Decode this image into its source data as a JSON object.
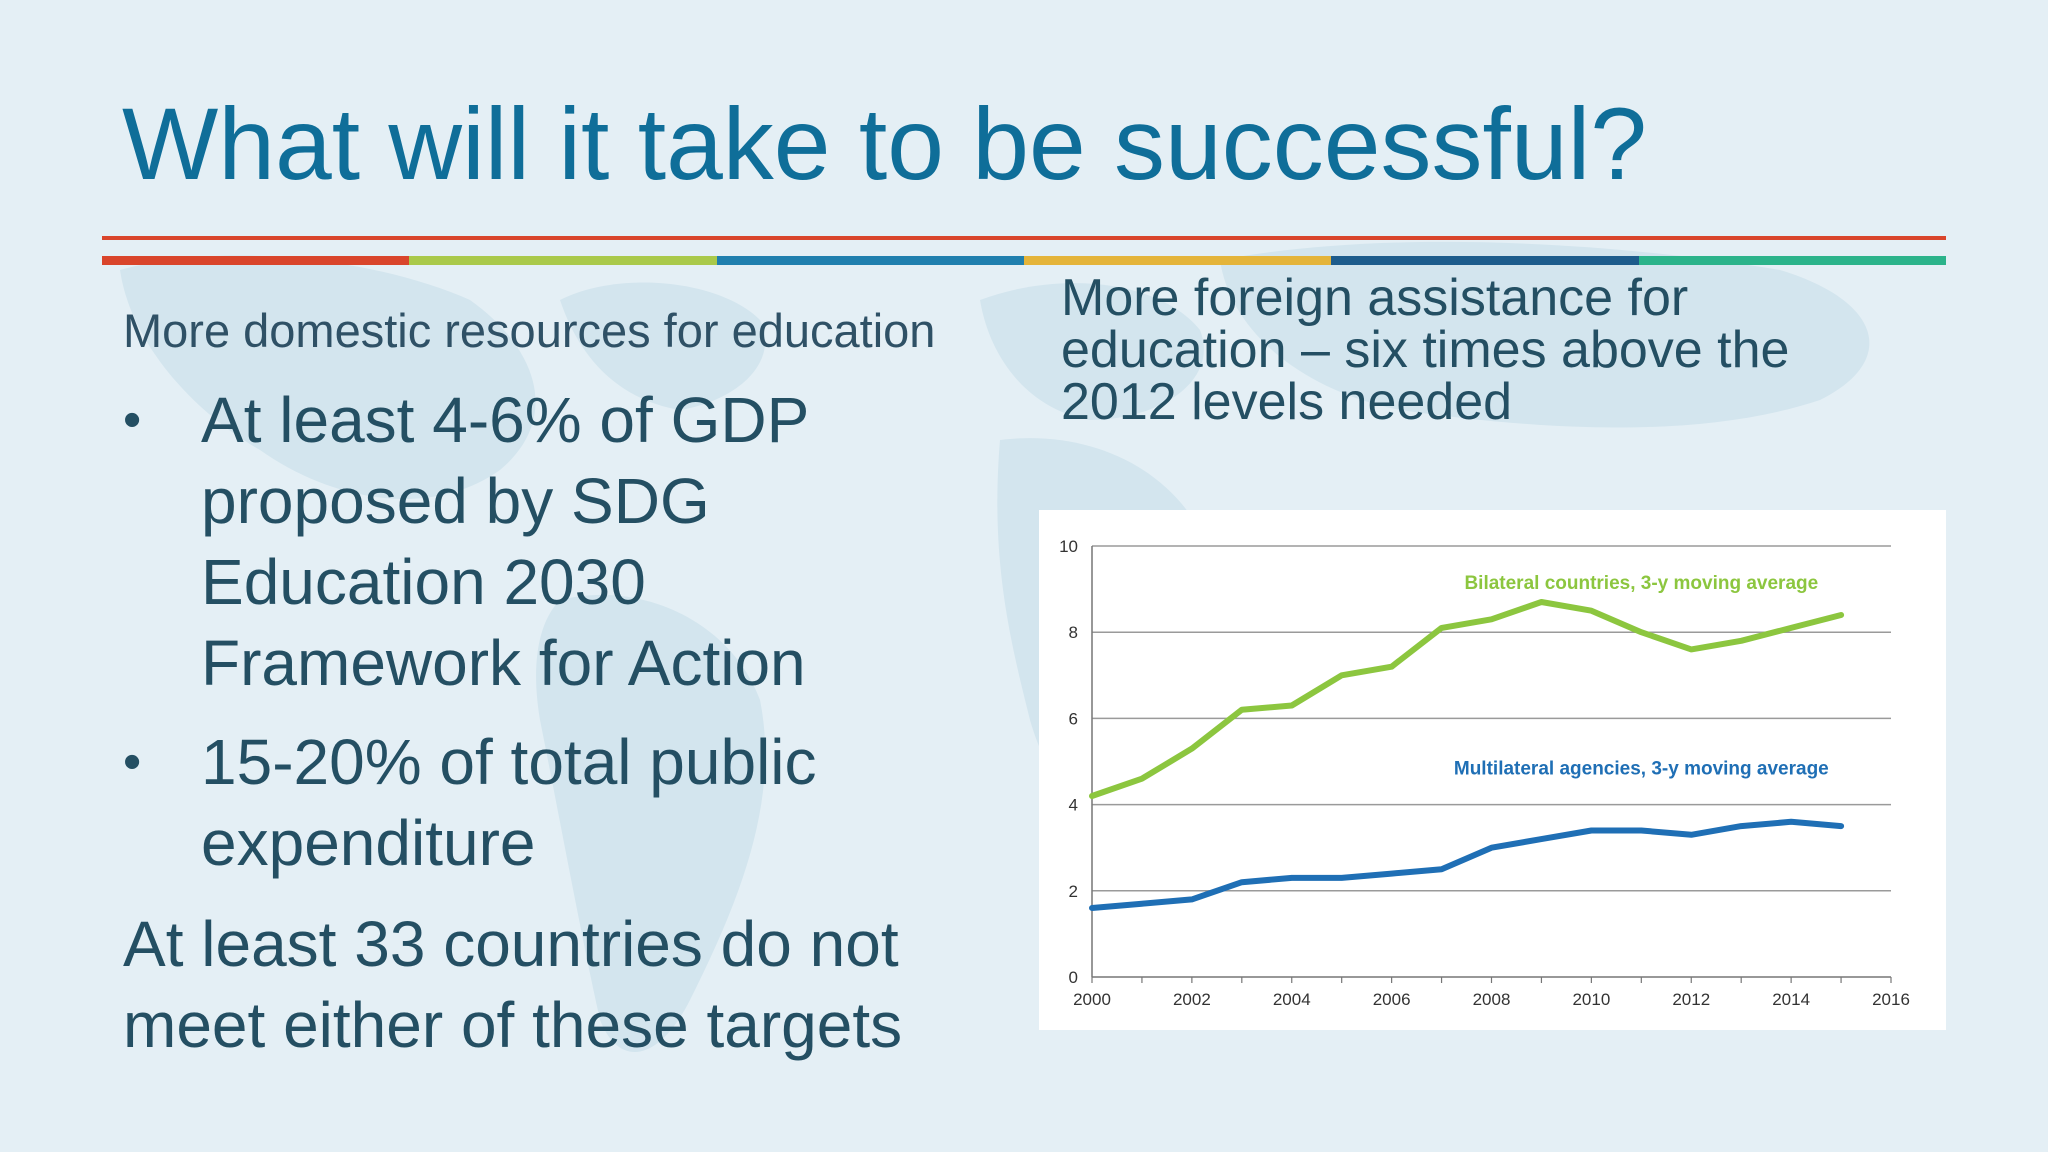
{
  "slide": {
    "title": "What will it take to be successful?",
    "left_subtitle": "More domestic resources for education",
    "bullets": [
      "At least 4-6% of GDP proposed by SDG Education 2030 Framework for Action",
      "15-20% of total public expenditure"
    ],
    "bottom_text": "At least 33 countries do not meet either of these targets",
    "right_subtitle": "More foreign assistance for education – six times above the 2012 levels needed",
    "rule_colors": [
      "#d9452b",
      "#a9c94a",
      "#1f7fae",
      "#e4b43a",
      "#1d5c8c",
      "#2bb38a"
    ],
    "title_color": "#0f6e99"
  },
  "chart_data": {
    "type": "line",
    "x": [
      2000,
      2001,
      2002,
      2003,
      2004,
      2005,
      2006,
      2007,
      2008,
      2009,
      2010,
      2011,
      2012,
      2013,
      2014,
      2015
    ],
    "series": [
      {
        "name": "Bilateral countries, 3-y moving average",
        "color": "#8cc63f",
        "values": [
          4.2,
          4.6,
          5.3,
          6.2,
          6.3,
          7.0,
          7.2,
          8.1,
          8.3,
          8.7,
          8.5,
          8.0,
          7.6,
          7.8,
          8.1,
          8.4
        ]
      },
      {
        "name": "Multilateral agencies, 3-y moving average",
        "color": "#1f6fb5",
        "values": [
          1.6,
          1.7,
          1.8,
          2.2,
          2.3,
          2.3,
          2.4,
          2.5,
          3.0,
          3.2,
          3.4,
          3.4,
          3.3,
          3.5,
          3.6,
          3.5
        ]
      }
    ],
    "xticks": [
      2000,
      2002,
      2004,
      2006,
      2008,
      2010,
      2012,
      2014,
      2016
    ],
    "yticks": [
      0,
      2,
      4,
      6,
      8,
      10
    ],
    "xlim": [
      2000,
      2016
    ],
    "ylim": [
      0,
      10
    ],
    "grid": true,
    "title": "",
    "xlabel": "",
    "ylabel": ""
  }
}
